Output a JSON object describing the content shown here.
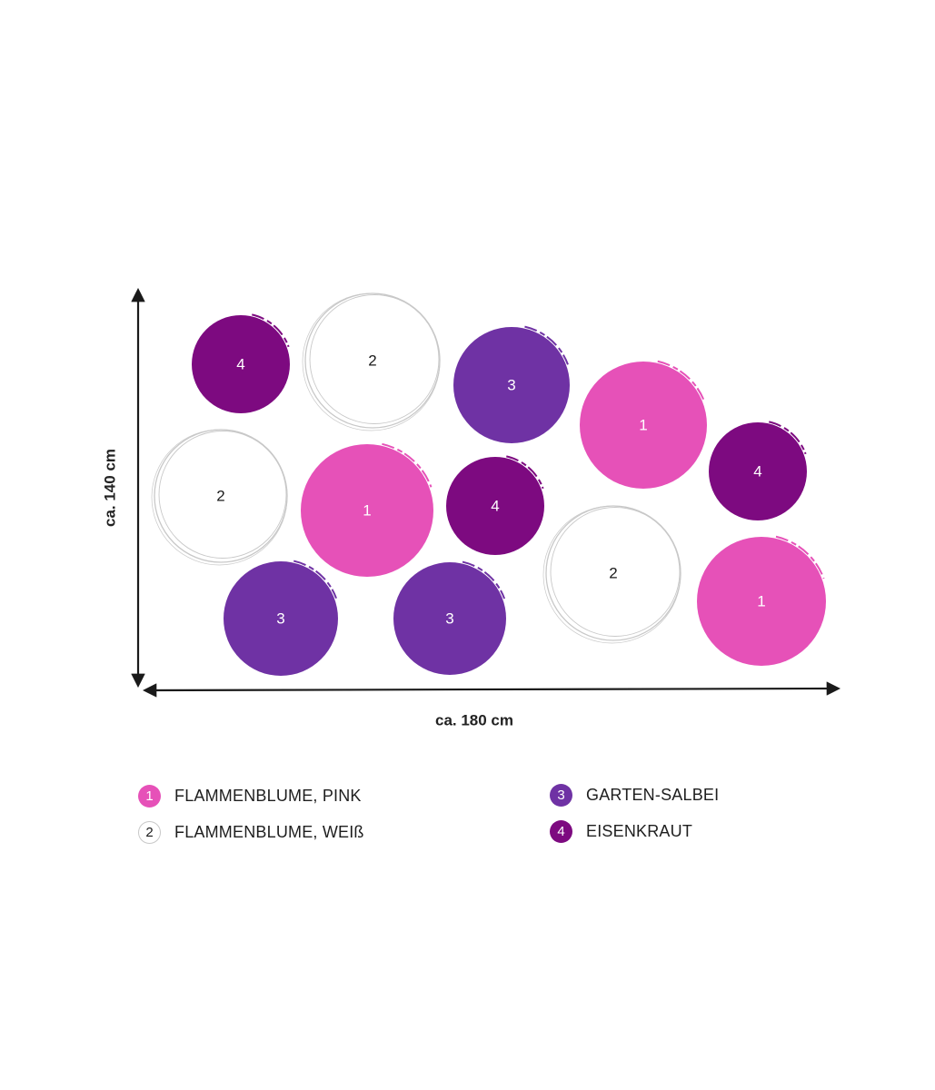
{
  "diagram": {
    "width_label": "ca. 180 cm",
    "height_label": "ca. 140 cm"
  },
  "colors": {
    "pink": "#e651b8",
    "white_outline": "#c8c8c8",
    "salbei": "#6f32a4",
    "eisenkraut": "#7d0a80",
    "axis": "#1a1a1a"
  },
  "plants": [
    {
      "number": "4",
      "species": "4"
    },
    {
      "number": "2",
      "species": "2"
    },
    {
      "number": "3",
      "species": "3"
    },
    {
      "number": "1",
      "species": "1"
    },
    {
      "number": "2",
      "species": "2"
    },
    {
      "number": "1",
      "species": "1"
    },
    {
      "number": "4",
      "species": "4"
    },
    {
      "number": "4",
      "species": "4"
    },
    {
      "number": "3",
      "species": "3"
    },
    {
      "number": "3",
      "species": "3"
    },
    {
      "number": "2",
      "species": "2"
    },
    {
      "number": "1",
      "species": "1"
    }
  ],
  "legend": [
    {
      "number": "1",
      "label": "FLAMMENBLUME, PINK",
      "species": "1"
    },
    {
      "number": "2",
      "label": "FLAMMENBLUME, WEIß",
      "species": "2"
    },
    {
      "number": "3",
      "label": "GARTEN-SALBEI",
      "species": "3"
    },
    {
      "number": "4",
      "label": "EISENKRAUT",
      "species": "4"
    }
  ]
}
